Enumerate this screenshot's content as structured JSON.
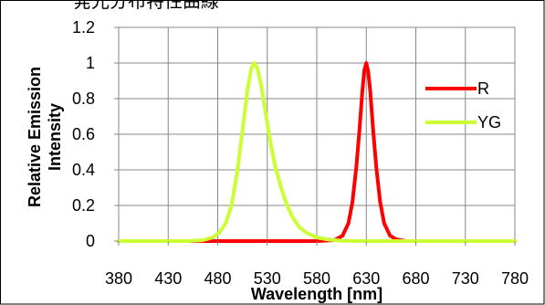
{
  "chart_data": {
    "type": "line",
    "title": "発光分布特性曲線",
    "xlabel": "Wavelength  [nm]",
    "ylabel": "Relative Emission Intensity",
    "ylabel_lines": [
      "Relative Emission",
      "Intensity"
    ],
    "xlim": [
      380,
      780
    ],
    "ylim": [
      0,
      1.2
    ],
    "x_ticks": [
      380,
      430,
      480,
      530,
      580,
      630,
      680,
      730,
      780
    ],
    "x_tick_labels": [
      "380",
      "430",
      "480",
      "530",
      "580",
      "630",
      "680",
      "730",
      "780"
    ],
    "y_ticks": [
      0,
      0.2,
      0.4,
      0.6,
      0.8,
      1.0,
      1.2
    ],
    "y_tick_labels": [
      "0",
      "0.2",
      "0.4",
      "0.6",
      "0.8",
      "1",
      "1.2"
    ],
    "grid": true,
    "legend_position": "right",
    "series": [
      {
        "name": "R",
        "color": "#ff0000",
        "x": [
          380,
          480,
          580,
          598,
          606,
          612,
          616,
          620,
          623,
          626,
          628,
          630,
          632,
          634,
          637,
          640,
          644,
          648,
          654,
          660,
          670,
          780
        ],
        "y": [
          0,
          0,
          0,
          0.005,
          0.03,
          0.1,
          0.22,
          0.42,
          0.62,
          0.84,
          0.96,
          1.0,
          0.95,
          0.84,
          0.62,
          0.42,
          0.22,
          0.1,
          0.03,
          0.01,
          0,
          0
        ]
      },
      {
        "name": "YG",
        "color": "#ccff33",
        "x": [
          380,
          450,
          465,
          475,
          482,
          488,
          494,
          500,
          505,
          510,
          514,
          517,
          520,
          524,
          528,
          533,
          538,
          544,
          550,
          556,
          562,
          570,
          580,
          592,
          605,
          620,
          780
        ],
        "y": [
          0,
          0,
          0.005,
          0.02,
          0.05,
          0.1,
          0.2,
          0.4,
          0.62,
          0.85,
          0.97,
          1.0,
          0.97,
          0.87,
          0.73,
          0.56,
          0.42,
          0.3,
          0.2,
          0.13,
          0.08,
          0.045,
          0.02,
          0.008,
          0.002,
          0,
          0
        ]
      }
    ]
  }
}
